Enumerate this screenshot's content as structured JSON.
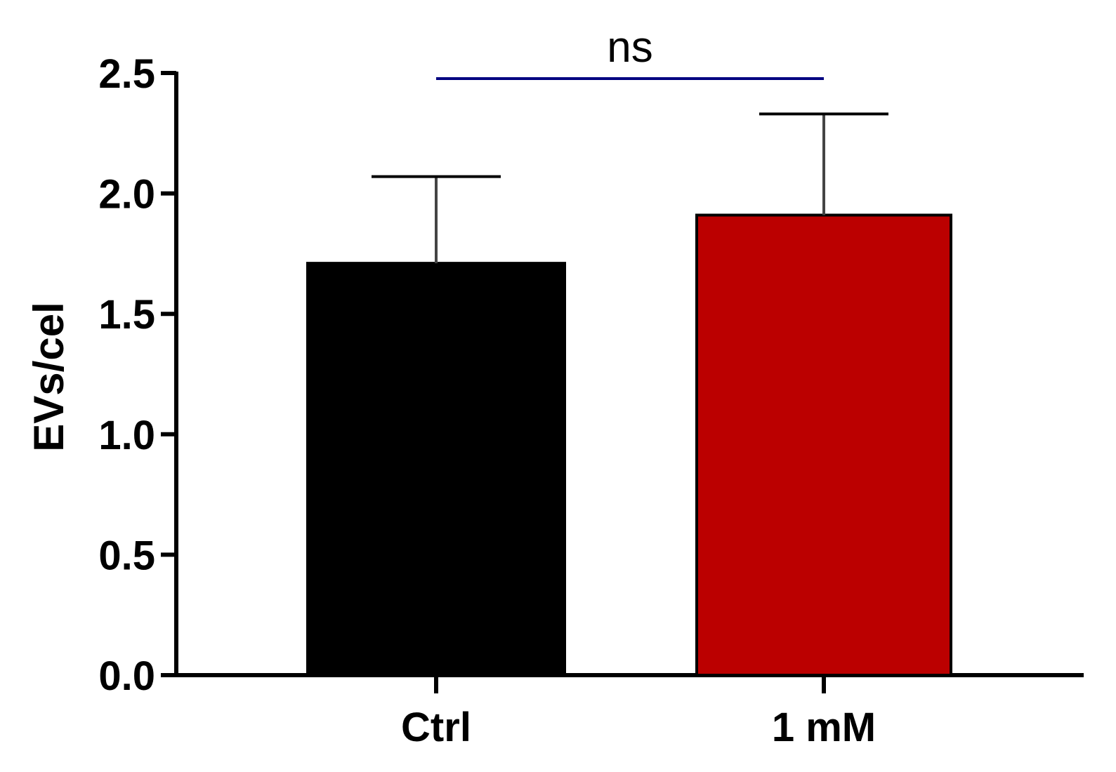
{
  "chart_data": {
    "type": "bar",
    "categories": [
      "Ctrl",
      "1 mM"
    ],
    "values": [
      1.71,
      1.91
    ],
    "errors": [
      0.36,
      0.42
    ],
    "colors": [
      "#000000",
      "#bb0000"
    ],
    "ylabel": "EVs/cel",
    "xlabel": "",
    "title": "",
    "ylim": [
      0,
      2.5
    ],
    "yticks": [
      "0.0",
      "0.5",
      "1.0",
      "1.5",
      "2.0",
      "2.5"
    ],
    "yticks_values": [
      0,
      0.5,
      1.0,
      1.5,
      2.0,
      2.5
    ],
    "significance": {
      "label": "ns",
      "from": "Ctrl",
      "to": "1 mM",
      "color": "#000080"
    },
    "grid": false,
    "legend": "none"
  }
}
